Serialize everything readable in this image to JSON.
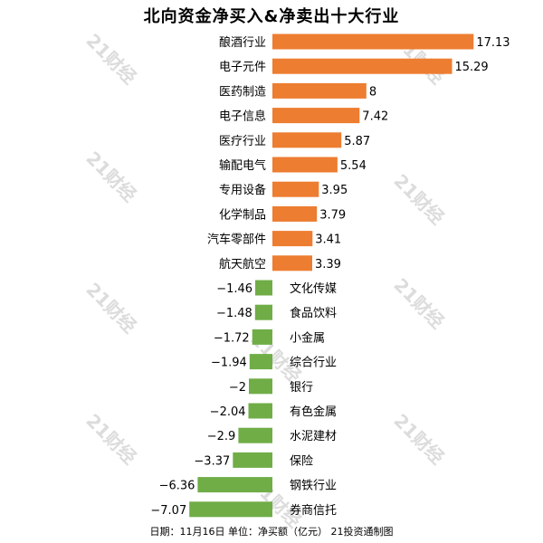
{
  "title": "北向资金净买入&净卖出十大行业",
  "footer": "日期：11月16日 单位：净买额（亿元） 21投资通制图",
  "watermark_text": "21财经",
  "colors": {
    "positive": "#ED7D31",
    "negative": "#70AD47"
  },
  "chart_data": {
    "type": "bar",
    "orientation": "horizontal",
    "title": "北向资金净买入&净卖出十大行业",
    "categories": [
      "酿酒行业",
      "电子元件",
      "医药制造",
      "电子信息",
      "医疗行业",
      "输配电气",
      "专用设备",
      "化学制品",
      "汽车零部件",
      "航天航空",
      "文化传媒",
      "食品饮料",
      "小金属",
      "综合行业",
      "银行",
      "有色金属",
      "水泥建材",
      "保险",
      "钢铁行业",
      "券商信托"
    ],
    "values": [
      17.13,
      15.29,
      8,
      7.42,
      5.87,
      5.54,
      3.95,
      3.79,
      3.41,
      3.39,
      -1.46,
      -1.48,
      -1.72,
      -1.94,
      -2,
      -2.04,
      -2.9,
      -3.37,
      -6.36,
      -7.07
    ],
    "value_labels": [
      "17.13",
      "15.29",
      "8",
      "7.42",
      "5.87",
      "5.54",
      "3.95",
      "3.79",
      "3.41",
      "3.39",
      "−1.46",
      "−1.48",
      "−1.72",
      "−1.94",
      "−2",
      "−2.04",
      "−2.9",
      "−3.37",
      "−6.36",
      "−7.07"
    ],
    "xlabel": "",
    "ylabel": "",
    "grid": false,
    "legend": "none"
  }
}
